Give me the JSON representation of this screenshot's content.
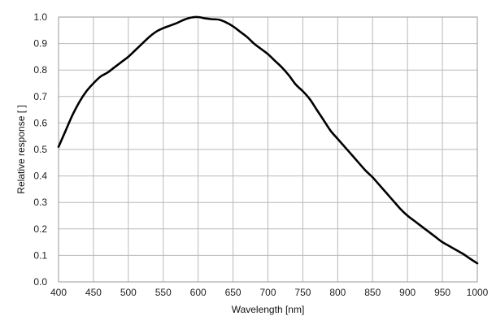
{
  "chart_data": {
    "type": "line",
    "title": "",
    "xlabel": "Wavelength [nm]",
    "ylabel": "Relative response [ ]",
    "xlim": [
      400,
      1000
    ],
    "ylim": [
      0,
      1.0
    ],
    "grid": true,
    "legend": "none",
    "x_ticks": [
      "400",
      "450",
      "500",
      "550",
      "600",
      "650",
      "700",
      "750",
      "800",
      "850",
      "900",
      "950",
      "1000"
    ],
    "y_ticks": [
      "0.0",
      "0.1",
      "0.2",
      "0.3",
      "0.4",
      "0.5",
      "0.6",
      "0.7",
      "0.8",
      "0.9",
      "1.0"
    ],
    "line_color": "#000000",
    "grid_color": "#b9b9b9",
    "series": [
      {
        "x": [
          400,
          410,
          420,
          430,
          440,
          450,
          460,
          470,
          480,
          490,
          500,
          510,
          520,
          530,
          540,
          550,
          560,
          570,
          580,
          590,
          600,
          610,
          620,
          630,
          640,
          650,
          660,
          670,
          680,
          690,
          700,
          710,
          720,
          730,
          740,
          750,
          760,
          770,
          780,
          790,
          800,
          810,
          820,
          830,
          840,
          850,
          860,
          870,
          880,
          890,
          900,
          910,
          920,
          930,
          940,
          950,
          960,
          970,
          980,
          990,
          1000
        ],
        "y": [
          0.51,
          0.57,
          0.63,
          0.68,
          0.72,
          0.75,
          0.775,
          0.79,
          0.81,
          0.83,
          0.85,
          0.875,
          0.9,
          0.925,
          0.945,
          0.958,
          0.968,
          0.978,
          0.99,
          0.998,
          1.0,
          0.995,
          0.992,
          0.99,
          0.98,
          0.965,
          0.945,
          0.925,
          0.9,
          0.88,
          0.86,
          0.835,
          0.81,
          0.78,
          0.745,
          0.72,
          0.69,
          0.65,
          0.61,
          0.57,
          0.54,
          0.51,
          0.48,
          0.45,
          0.42,
          0.395,
          0.365,
          0.335,
          0.305,
          0.275,
          0.25,
          0.23,
          0.21,
          0.19,
          0.17,
          0.15,
          0.135,
          0.12,
          0.105,
          0.087,
          0.07
        ]
      }
    ]
  }
}
